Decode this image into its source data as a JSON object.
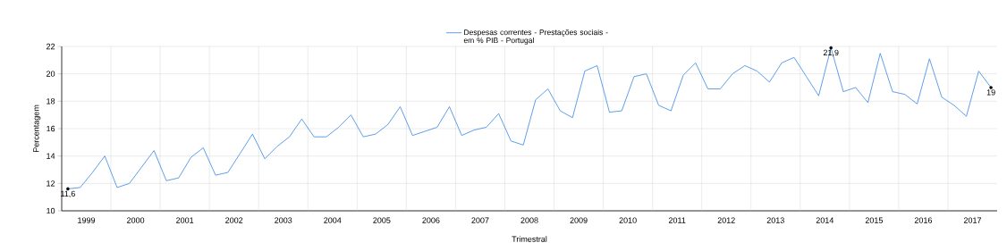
{
  "chart_data": {
    "type": "line",
    "xlabel": "Trimestral",
    "ylabel": "Percentagem",
    "legend": "top",
    "grid": true,
    "xlim": [
      1999,
      2018
    ],
    "ylim": [
      10,
      22
    ],
    "yticks": [
      10,
      12,
      14,
      16,
      18,
      20,
      22
    ],
    "xticks": [
      {
        "value": 1999.5,
        "label": "1999"
      },
      {
        "value": 2000,
        "label": null
      },
      {
        "value": 2000.5,
        "label": "2000"
      },
      {
        "value": 2001,
        "label": null
      },
      {
        "value": 2001.5,
        "label": "2001"
      },
      {
        "value": 2002,
        "label": null
      },
      {
        "value": 2002.5,
        "label": "2002"
      },
      {
        "value": 2003,
        "label": null
      },
      {
        "value": 2003.5,
        "label": "2003"
      },
      {
        "value": 2004,
        "label": null
      },
      {
        "value": 2004.5,
        "label": "2004"
      },
      {
        "value": 2005,
        "label": null
      },
      {
        "value": 2005.5,
        "label": "2005"
      },
      {
        "value": 2006,
        "label": null
      },
      {
        "value": 2006.5,
        "label": "2006"
      },
      {
        "value": 2007,
        "label": null
      },
      {
        "value": 2007.5,
        "label": "2007"
      },
      {
        "value": 2008,
        "label": null
      },
      {
        "value": 2008.5,
        "label": "2008"
      },
      {
        "value": 2009,
        "label": null
      },
      {
        "value": 2009.5,
        "label": "2009"
      },
      {
        "value": 2010,
        "label": null
      },
      {
        "value": 2010.5,
        "label": "2010"
      },
      {
        "value": 2011,
        "label": null
      },
      {
        "value": 2011.5,
        "label": "2011"
      },
      {
        "value": 2012,
        "label": null
      },
      {
        "value": 2012.5,
        "label": "2012"
      },
      {
        "value": 2013,
        "label": null
      },
      {
        "value": 2013.5,
        "label": "2013"
      },
      {
        "value": 2014,
        "label": null
      },
      {
        "value": 2014.5,
        "label": "2014"
      },
      {
        "value": 2015,
        "label": null
      },
      {
        "value": 2015.5,
        "label": "2015"
      },
      {
        "value": 2016,
        "label": null
      },
      {
        "value": 2016.5,
        "label": "2016"
      },
      {
        "value": 2017,
        "label": null
      },
      {
        "value": 2017.5,
        "label": "2017"
      }
    ],
    "x": [
      1999.125,
      1999.375,
      1999.625,
      1999.875,
      2000.125,
      2000.375,
      2000.625,
      2000.875,
      2001.125,
      2001.375,
      2001.625,
      2001.875,
      2002.125,
      2002.375,
      2002.625,
      2002.875,
      2003.125,
      2003.375,
      2003.625,
      2003.875,
      2004.125,
      2004.375,
      2004.625,
      2004.875,
      2005.125,
      2005.375,
      2005.625,
      2005.875,
      2006.125,
      2006.375,
      2006.625,
      2006.875,
      2007.125,
      2007.375,
      2007.625,
      2007.875,
      2008.125,
      2008.375,
      2008.625,
      2008.875,
      2009.125,
      2009.375,
      2009.625,
      2009.875,
      2010.125,
      2010.375,
      2010.625,
      2010.875,
      2011.125,
      2011.375,
      2011.625,
      2011.875,
      2012.125,
      2012.375,
      2012.625,
      2012.875,
      2013.125,
      2013.375,
      2013.625,
      2013.875,
      2014.125,
      2014.375,
      2014.625,
      2014.875,
      2015.125,
      2015.375,
      2015.625,
      2015.875,
      2016.125,
      2016.375,
      2016.625,
      2016.875,
      2017.125,
      2017.375,
      2017.625,
      2017.875
    ],
    "series": [
      {
        "name": "Despesas correntes - Prestações sociais - em % PIB - Portugal",
        "color": "#4d94e8",
        "values": [
          11.6,
          11.7,
          12.8,
          14.0,
          11.7,
          12.0,
          13.2,
          14.4,
          12.2,
          12.4,
          13.9,
          14.6,
          12.6,
          12.8,
          14.2,
          15.6,
          13.8,
          14.7,
          15.4,
          16.7,
          15.4,
          15.4,
          16.1,
          17.0,
          15.4,
          15.6,
          16.3,
          17.6,
          15.5,
          15.8,
          16.1,
          17.6,
          15.5,
          15.9,
          16.1,
          17.1,
          15.1,
          14.8,
          18.1,
          18.9,
          17.3,
          16.8,
          20.2,
          20.6,
          17.2,
          17.3,
          19.8,
          20.0,
          17.7,
          17.3,
          19.9,
          20.8,
          18.9,
          18.9,
          20.0,
          20.6,
          20.2,
          19.4,
          20.8,
          21.2,
          19.8,
          18.4,
          21.9,
          18.7,
          19.0,
          17.9,
          21.5,
          18.7,
          18.5,
          17.8,
          21.1,
          18.3,
          17.7,
          16.9,
          20.2,
          19.0
        ],
        "value_labels": [
          "11,6",
          null,
          null,
          null,
          null,
          null,
          null,
          null,
          null,
          null,
          null,
          null,
          null,
          null,
          null,
          null,
          null,
          null,
          null,
          null,
          null,
          null,
          null,
          null,
          null,
          null,
          null,
          null,
          null,
          null,
          null,
          null,
          null,
          null,
          null,
          null,
          null,
          null,
          null,
          null,
          null,
          null,
          null,
          null,
          null,
          null,
          null,
          null,
          null,
          null,
          null,
          null,
          null,
          null,
          null,
          null,
          null,
          null,
          null,
          null,
          null,
          null,
          "21,9",
          null,
          null,
          null,
          null,
          null,
          null,
          null,
          null,
          null,
          null,
          null,
          null,
          "19"
        ]
      }
    ]
  }
}
